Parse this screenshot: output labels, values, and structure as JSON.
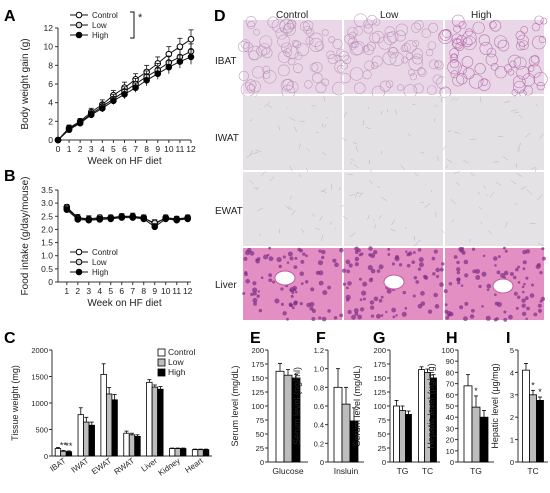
{
  "panels": {
    "A": {
      "letter": "A"
    },
    "B": {
      "letter": "B"
    },
    "C": {
      "letter": "C"
    },
    "D": {
      "letter": "D"
    },
    "E": {
      "letter": "E"
    },
    "F": {
      "letter": "F"
    },
    "G": {
      "letter": "G"
    },
    "H": {
      "letter": "H"
    },
    "I": {
      "letter": "I"
    }
  },
  "histology": {
    "columns": [
      "Control",
      "Low",
      "High"
    ],
    "rows": [
      "IBAT",
      "IWAT",
      "EWAT",
      "Liver"
    ],
    "tissue_colors": {
      "IBAT": "#e9d6e6",
      "IWAT": "#e3e1e4",
      "EWAT": "#e4e2e5",
      "Liver": "#e38fc4"
    }
  },
  "chart_data": [
    {
      "id": "A",
      "type": "line",
      "xlabel": "Week on HF diet",
      "ylabel": "Body weight gain (g)",
      "x": [
        0,
        1,
        2,
        3,
        4,
        5,
        6,
        7,
        8,
        9,
        10,
        11,
        12
      ],
      "xticks": [
        "0",
        "1",
        "2",
        "3",
        "4",
        "5",
        "6",
        "7",
        "8",
        "9",
        "10",
        "11",
        "12"
      ],
      "ylim": [
        0,
        12
      ],
      "yticks": [
        "0",
        "2",
        "4",
        "6",
        "8",
        "10",
        "12"
      ],
      "series": [
        {
          "name": "Control",
          "marker": "open",
          "values": [
            0,
            1.3,
            2.0,
            3.0,
            3.8,
            4.8,
            5.6,
            6.5,
            7.3,
            8.2,
            9.2,
            10.0,
            10.8
          ],
          "err": [
            0.2,
            0.3,
            0.3,
            0.4,
            0.5,
            0.5,
            0.6,
            0.6,
            0.7,
            0.7,
            0.8,
            0.9,
            1.0
          ]
        },
        {
          "name": "Low",
          "marker": "grey",
          "values": [
            0,
            1.2,
            1.9,
            2.8,
            3.6,
            4.4,
            5.2,
            6.0,
            6.8,
            7.5,
            8.3,
            8.9,
            9.5
          ],
          "err": [
            0.2,
            0.3,
            0.3,
            0.4,
            0.4,
            0.5,
            0.5,
            0.6,
            0.6,
            0.7,
            0.7,
            0.8,
            0.8
          ]
        },
        {
          "name": "High",
          "marker": "filled",
          "values": [
            0,
            1.1,
            1.8,
            2.7,
            3.4,
            4.2,
            4.9,
            5.6,
            6.4,
            7.1,
            7.8,
            8.4,
            8.9
          ],
          "err": [
            0.2,
            0.3,
            0.3,
            0.3,
            0.4,
            0.4,
            0.5,
            0.5,
            0.6,
            0.6,
            0.7,
            0.7,
            0.8
          ]
        }
      ],
      "annotation": "*",
      "legend": "top-left"
    },
    {
      "id": "B",
      "type": "line",
      "xlabel": "Week on HF diet",
      "ylabel": "Food intake (g/day/mouse)",
      "x": [
        1,
        2,
        3,
        4,
        5,
        6,
        7,
        8,
        9,
        10,
        11,
        12
      ],
      "xticks": [
        "1",
        "2",
        "3",
        "4",
        "5",
        "6",
        "7",
        "8",
        "9",
        "10",
        "11",
        "12"
      ],
      "ylim": [
        0,
        3.5
      ],
      "yticks": [
        "0",
        "0.5",
        "1.0",
        "1.5",
        "2.0",
        "2.5",
        "3.0",
        "3.5"
      ],
      "series": [
        {
          "name": "Control",
          "marker": "open",
          "values": [
            2.85,
            2.45,
            2.4,
            2.45,
            2.45,
            2.5,
            2.5,
            2.45,
            2.2,
            2.45,
            2.4,
            2.45
          ],
          "err": [
            0.1,
            0.12,
            0.12,
            0.1,
            0.1,
            0.1,
            0.12,
            0.1,
            0.15,
            0.1,
            0.1,
            0.1
          ]
        },
        {
          "name": "Low",
          "marker": "grey",
          "values": [
            2.8,
            2.42,
            2.38,
            2.4,
            2.42,
            2.48,
            2.48,
            2.42,
            2.25,
            2.42,
            2.38,
            2.42
          ],
          "err": [
            0.1,
            0.1,
            0.1,
            0.1,
            0.1,
            0.1,
            0.1,
            0.1,
            0.12,
            0.1,
            0.1,
            0.1
          ]
        },
        {
          "name": "High",
          "marker": "filled",
          "values": [
            2.75,
            2.38,
            2.35,
            2.38,
            2.4,
            2.45,
            2.45,
            2.4,
            2.1,
            2.4,
            2.35,
            2.4
          ],
          "err": [
            0.1,
            0.1,
            0.1,
            0.1,
            0.1,
            0.1,
            0.1,
            0.1,
            0.12,
            0.1,
            0.1,
            0.1
          ]
        }
      ],
      "legend": "bottom-left"
    },
    {
      "id": "C",
      "type": "bar",
      "ylabel": "Tissue weight (mg)",
      "categories": [
        "IBAT",
        "IWAT",
        "EWAT",
        "RWAT",
        "Liver",
        "Kidney",
        "Heart"
      ],
      "ylim": [
        0,
        2000
      ],
      "yticks": [
        "0",
        "500",
        "1000",
        "1500",
        "2000"
      ],
      "series": [
        {
          "name": "Control",
          "values": [
            140,
            780,
            1540,
            430,
            1390,
            140,
            120
          ],
          "err": [
            20,
            130,
            200,
            40,
            50,
            10,
            10
          ]
        },
        {
          "name": "Low",
          "values": [
            90,
            640,
            1170,
            400,
            1300,
            140,
            120
          ],
          "err": [
            15,
            90,
            120,
            30,
            40,
            10,
            10
          ]
        },
        {
          "name": "High",
          "values": [
            80,
            580,
            1060,
            370,
            1260,
            140,
            120
          ],
          "err": [
            15,
            60,
            100,
            30,
            50,
            10,
            10
          ]
        }
      ],
      "annotations": [
        {
          "text": "**",
          "category": "IBAT"
        },
        {
          "text": "**",
          "category": "IBAT"
        }
      ],
      "legend": "top-right"
    },
    {
      "id": "E",
      "type": "bar",
      "ylabel": "Serum level (mg/dL)",
      "categories": [
        "Glucose"
      ],
      "ylim": [
        0,
        200
      ],
      "yticks": [
        "0",
        "25",
        "50",
        "75",
        "100",
        "125",
        "150",
        "175",
        "200"
      ],
      "series": [
        {
          "name": "Control",
          "values": [
            162
          ],
          "err": [
            14
          ]
        },
        {
          "name": "Low",
          "values": [
            155
          ],
          "err": [
            10
          ]
        },
        {
          "name": "High",
          "values": [
            150
          ],
          "err": [
            6
          ]
        }
      ]
    },
    {
      "id": "F",
      "type": "bar",
      "ylabel": "Serum level (ng/ml)",
      "categories": [
        "Insluin"
      ],
      "ylim": [
        0,
        1.2
      ],
      "yticks": [
        "0",
        "0.2",
        "0.4",
        "0.6",
        "0.8",
        "1.0",
        "1.2"
      ],
      "series": [
        {
          "name": "Control",
          "values": [
            0.8
          ],
          "err": [
            0.2
          ]
        },
        {
          "name": "Low",
          "values": [
            0.62
          ],
          "err": [
            0.18
          ]
        },
        {
          "name": "High",
          "values": [
            0.44
          ],
          "err": [
            0.14
          ]
        }
      ]
    },
    {
      "id": "G",
      "type": "bar",
      "ylabel": "Serum level (mg/dL)",
      "categories": [
        "TG",
        "TC"
      ],
      "ylim": [
        0,
        200
      ],
      "yticks": [
        "0",
        "25",
        "50",
        "75",
        "100",
        "125",
        "150",
        "175",
        "200"
      ],
      "series": [
        {
          "name": "Control",
          "values": [
            100,
            165
          ],
          "err": [
            10,
            5
          ]
        },
        {
          "name": "Low",
          "values": [
            92,
            160
          ],
          "err": [
            8,
            6
          ]
        },
        {
          "name": "High",
          "values": [
            85,
            150
          ],
          "err": [
            6,
            6
          ]
        }
      ]
    },
    {
      "id": "H",
      "type": "bar",
      "ylabel": "Hepatic level (μg/mg)",
      "categories": [
        "TG"
      ],
      "ylim": [
        0,
        100
      ],
      "yticks": [
        "0",
        "10",
        "20",
        "30",
        "40",
        "50",
        "60",
        "70",
        "80",
        "90",
        "100"
      ],
      "series": [
        {
          "name": "Control",
          "values": [
            68
          ],
          "err": [
            10
          ]
        },
        {
          "name": "Low",
          "values": [
            49
          ],
          "err": [
            10
          ]
        },
        {
          "name": "High",
          "values": [
            40
          ],
          "err": [
            6
          ]
        }
      ],
      "annotations": [
        {
          "text": "*",
          "category": "TG"
        }
      ]
    },
    {
      "id": "I",
      "type": "bar",
      "ylabel": "Hepatic level (μg/mg)",
      "categories": [
        "TC"
      ],
      "ylim": [
        0,
        5
      ],
      "yticks": [
        "0",
        "1",
        "2",
        "3",
        "4",
        "5"
      ],
      "series": [
        {
          "name": "Control",
          "values": [
            4.1
          ],
          "err": [
            0.3
          ]
        },
        {
          "name": "Low",
          "values": [
            3.0
          ],
          "err": [
            0.2
          ]
        },
        {
          "name": "High",
          "values": [
            2.75
          ],
          "err": [
            0.15
          ]
        }
      ],
      "annotations": [
        {
          "text": "*",
          "category": "TC"
        },
        {
          "text": "*",
          "category": "TC"
        }
      ]
    }
  ],
  "colors": {
    "control": "#ffffff",
    "low": "#bdbdbd",
    "high": "#000000",
    "axis": "#333333"
  }
}
